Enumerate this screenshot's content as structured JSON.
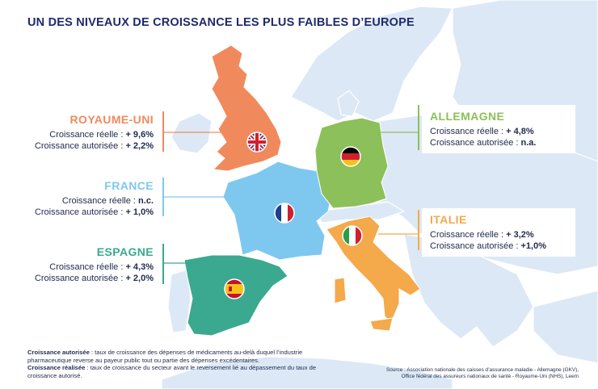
{
  "title": "UN DES NIVEAUX DE CROISSANCE LES PLUS FAIBLES D’EUROPE",
  "colors": {
    "sea": "#ffffff",
    "land": "#dce8f5",
    "uk": "#f08a5d",
    "france": "#7ec8ef",
    "spain": "#3aa98f",
    "germany": "#8cc05a",
    "italy": "#f4a94a"
  },
  "countries": {
    "uk": {
      "name": "ROYAUME-UNI",
      "line1_label": "Croissance réelle : ",
      "line1_value": "+ 9,6%",
      "line2_label": "Croissance autorisée : ",
      "line2_value": "+ 2,2%",
      "flag_icon": "uk-flag-icon"
    },
    "france": {
      "name": "FRANCE",
      "line1_label": "Croissance réelle : ",
      "line1_value": "n.c.",
      "line2_label": "Croissance autorisée : ",
      "line2_value": "+ 1,0%",
      "flag_icon": "france-flag-icon"
    },
    "spain": {
      "name": "ESPAGNE",
      "line1_label": "Croissance réelle : ",
      "line1_value": "+ 4,3%",
      "line2_label": "Croissance autorisée : ",
      "line2_value": "+ 2,0%",
      "flag_icon": "spain-flag-icon"
    },
    "germany": {
      "name": "ALLEMAGNE",
      "line1_label": "Croissance réelle : ",
      "line1_value": "+ 4,8%",
      "line2_label": "Croissance autorisée : ",
      "line2_value": "n.a.",
      "flag_icon": "germany-flag-icon"
    },
    "italy": {
      "name": "ITALIE",
      "line1_label": "Croissance réelle : ",
      "line1_value": "+ 3,2%",
      "line2_label": "Croissance autorisée : ",
      "line2_value": "+1,0%",
      "flag_icon": "italy-flag-icon"
    }
  },
  "notes": {
    "def1_term": "Croissance autorisée",
    "def1_text": " : taux de croissance des dépenses de médicaments au-delà duquel l’industrie pharmaceutique reverse au payeur public tout ou partie des dépenses excédentaires.",
    "def2_term": "Croissance réalisée",
    "def2_text": " : taux de croissance du secteur avant le reversement lié au dépassement du taux de croissance autorisé."
  },
  "source": {
    "line1": "Source : Association nationale des caisses d’assurance maladie - Allemagne (GKV),",
    "line2": "Office fédéral des assureurs nationaux de santé - Royaume-Uni (NHS), Leem"
  }
}
